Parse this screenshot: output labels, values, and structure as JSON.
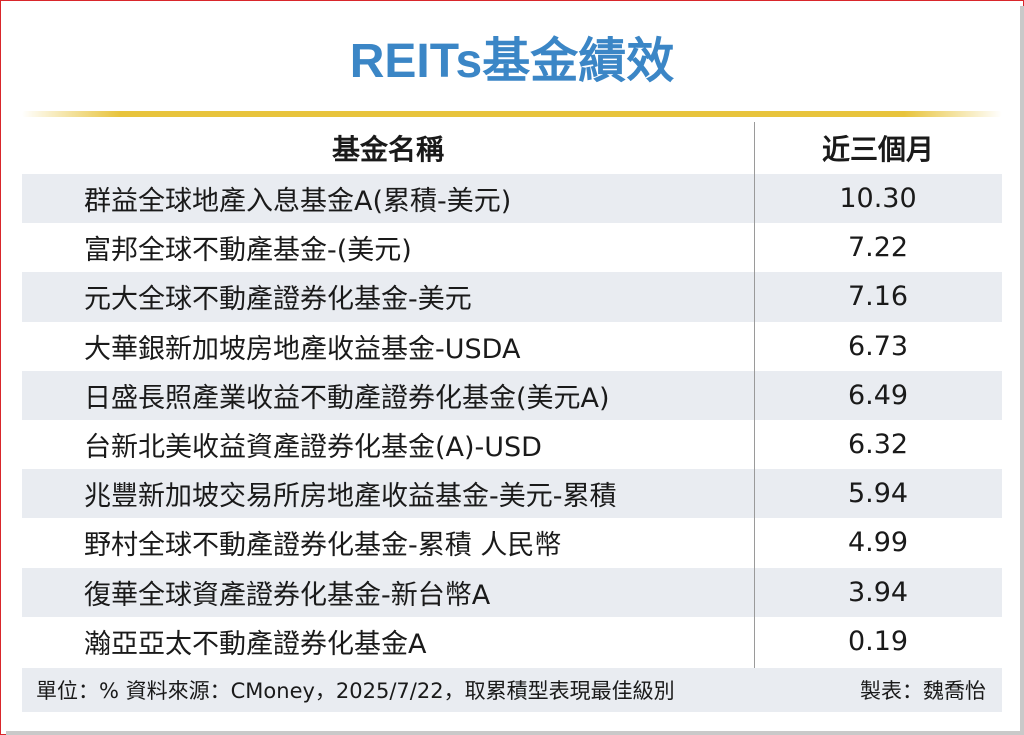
{
  "title": "REITs基金績效",
  "table": {
    "headers": {
      "name": "基金名稱",
      "value": "近三個月"
    },
    "rows": [
      {
        "name": "群益全球地產入息基金A(累積-美元)",
        "value": "10.30"
      },
      {
        "name": "富邦全球不動產基金-(美元)",
        "value": "7.22"
      },
      {
        "name": "元大全球不動產證券化基金-美元",
        "value": "7.16"
      },
      {
        "name": "大華銀新加坡房地產收益基金-USDA",
        "value": "6.73"
      },
      {
        "name": "日盛長照產業收益不動產證券化基金(美元A)",
        "value": "6.49"
      },
      {
        "name": "台新北美收益資產證券化基金(A)-USD",
        "value": "6.32"
      },
      {
        "name": "兆豐新加坡交易所房地產收益基金-美元-累積",
        "value": "5.94"
      },
      {
        "name": "野村全球不動產證券化基金-累積 人民幣",
        "value": "4.99"
      },
      {
        "name": "復華全球資產證券化基金-新台幣A",
        "value": "3.94"
      },
      {
        "name": "瀚亞亞太不動產證券化基金A",
        "value": "0.19"
      }
    ]
  },
  "footer": {
    "note": "單位：%  資料來源：CMoney，2025/7/22，取累積型表現最佳級別",
    "credit": "製表：魏喬怡"
  },
  "colors": {
    "title": "#3b86c6",
    "accent_line": "#e8c43c",
    "row_shade": "#e9ecf1",
    "border": "#d9262b"
  }
}
